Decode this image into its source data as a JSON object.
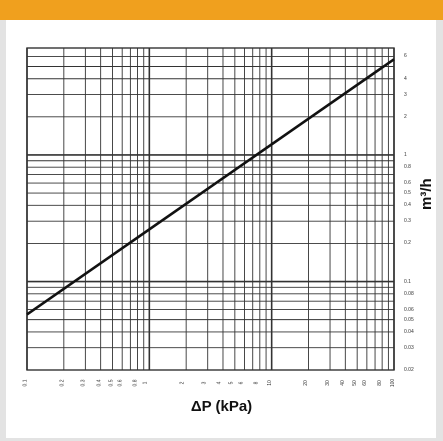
{
  "chart_data": {
    "type": "line",
    "xlabel": "ΔP (kPa)",
    "ylabel": "m³/h",
    "xscale": "log",
    "yscale": "log",
    "xlim": [
      0.1,
      100
    ],
    "ylim": [
      0.02,
      7
    ],
    "x_ticks": [
      "0.1",
      "0.2",
      "0.3",
      "0.4",
      "0.5",
      "0.6",
      "0.8",
      "1",
      "2",
      "3",
      "4",
      "5",
      "6",
      "8",
      "10",
      "20",
      "30",
      "40",
      "50",
      "60",
      "80",
      "100"
    ],
    "y_ticks": [
      "6",
      "4",
      "3",
      "2",
      "1",
      "0.8",
      "0.6",
      "0.5",
      "0.4",
      "0.3",
      "0.2",
      "0.1",
      "0.08",
      "0.06",
      "0.05",
      "0.04",
      "0.03",
      "0.02"
    ],
    "series": [
      {
        "points": [
          [
            0.1,
            0.055
          ],
          [
            100,
            5.7
          ]
        ]
      }
    ],
    "grid": true,
    "colors": {
      "header": "#f0a01e",
      "line": "#111111",
      "grid": "#333333"
    }
  }
}
